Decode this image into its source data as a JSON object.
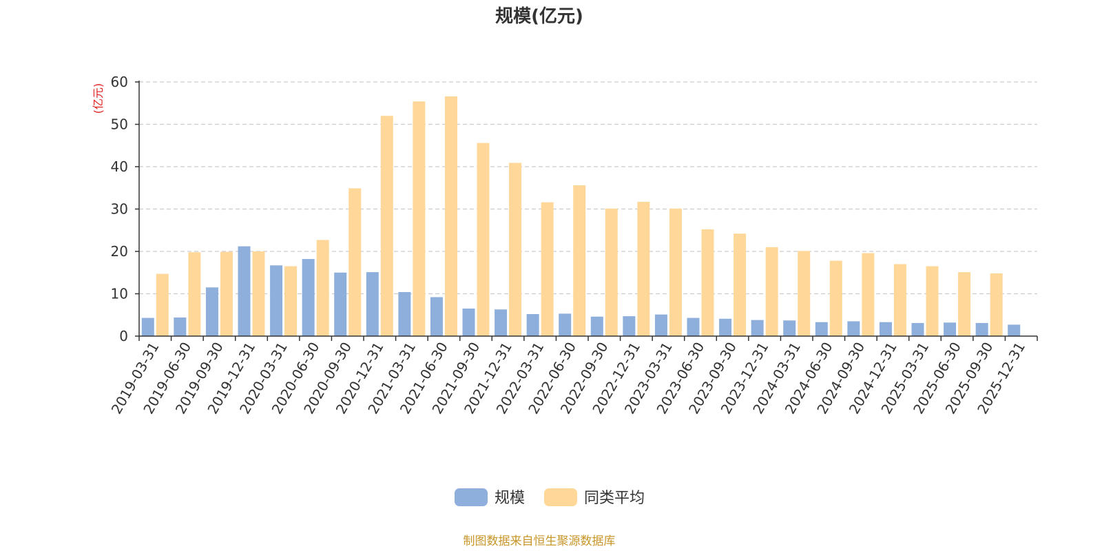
{
  "chart_data": {
    "type": "bar",
    "title": "规模(亿元)",
    "ylabel": "(亿元)",
    "xlabel": "",
    "ylim": [
      0,
      60
    ],
    "yticks": [
      0,
      10,
      20,
      30,
      40,
      50,
      60
    ],
    "grid": true,
    "legend_position": "bottom",
    "categories": [
      "2019-03-31",
      "2019-06-30",
      "2019-09-30",
      "2019-12-31",
      "2020-03-31",
      "2020-06-30",
      "2020-09-30",
      "2020-12-31",
      "2021-03-31",
      "2021-06-30",
      "2021-09-30",
      "2021-12-31",
      "2022-03-31",
      "2022-06-30",
      "2022-09-30",
      "2022-12-31",
      "2023-03-31",
      "2023-06-30",
      "2023-09-30",
      "2023-12-31",
      "2024-03-31",
      "2024-06-30",
      "2024-09-30",
      "2024-12-31",
      "2025-03-31",
      "2025-06-30",
      "2025-09-30",
      "2025-12-31"
    ],
    "series": [
      {
        "name": "规模",
        "color": "#8eaedc",
        "values": [
          4.3,
          4.4,
          11.5,
          21.2,
          16.7,
          18.2,
          15.0,
          15.1,
          10.4,
          9.2,
          6.5,
          6.3,
          5.2,
          5.3,
          4.6,
          4.7,
          5.1,
          4.3,
          4.1,
          3.8,
          3.7,
          3.3,
          3.5,
          3.3,
          3.1,
          3.2,
          3.1,
          2.7
        ]
      },
      {
        "name": "同类平均",
        "color": "#ffd899",
        "values": [
          14.7,
          19.8,
          19.9,
          20.0,
          16.5,
          22.7,
          34.9,
          52.0,
          55.4,
          56.6,
          45.6,
          40.9,
          31.6,
          35.6,
          30.1,
          31.7,
          30.1,
          25.2,
          24.2,
          21.0,
          20.1,
          17.8,
          19.6,
          17.0,
          16.5,
          15.1,
          14.8,
          null
        ]
      }
    ],
    "source_note": "制图数据来自恒生聚源数据库"
  }
}
